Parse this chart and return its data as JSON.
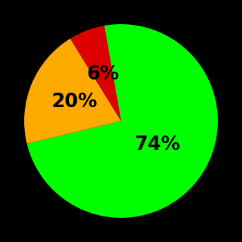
{
  "slices": [
    74,
    20,
    6
  ],
  "colors": [
    "#00ff00",
    "#ffaa00",
    "#dd0000"
  ],
  "labels": [
    "74%",
    "20%",
    "6%"
  ],
  "background_color": "#000000",
  "startangle": 100,
  "label_fontsize": 20,
  "label_fontweight": "bold",
  "label_color": "#000000"
}
